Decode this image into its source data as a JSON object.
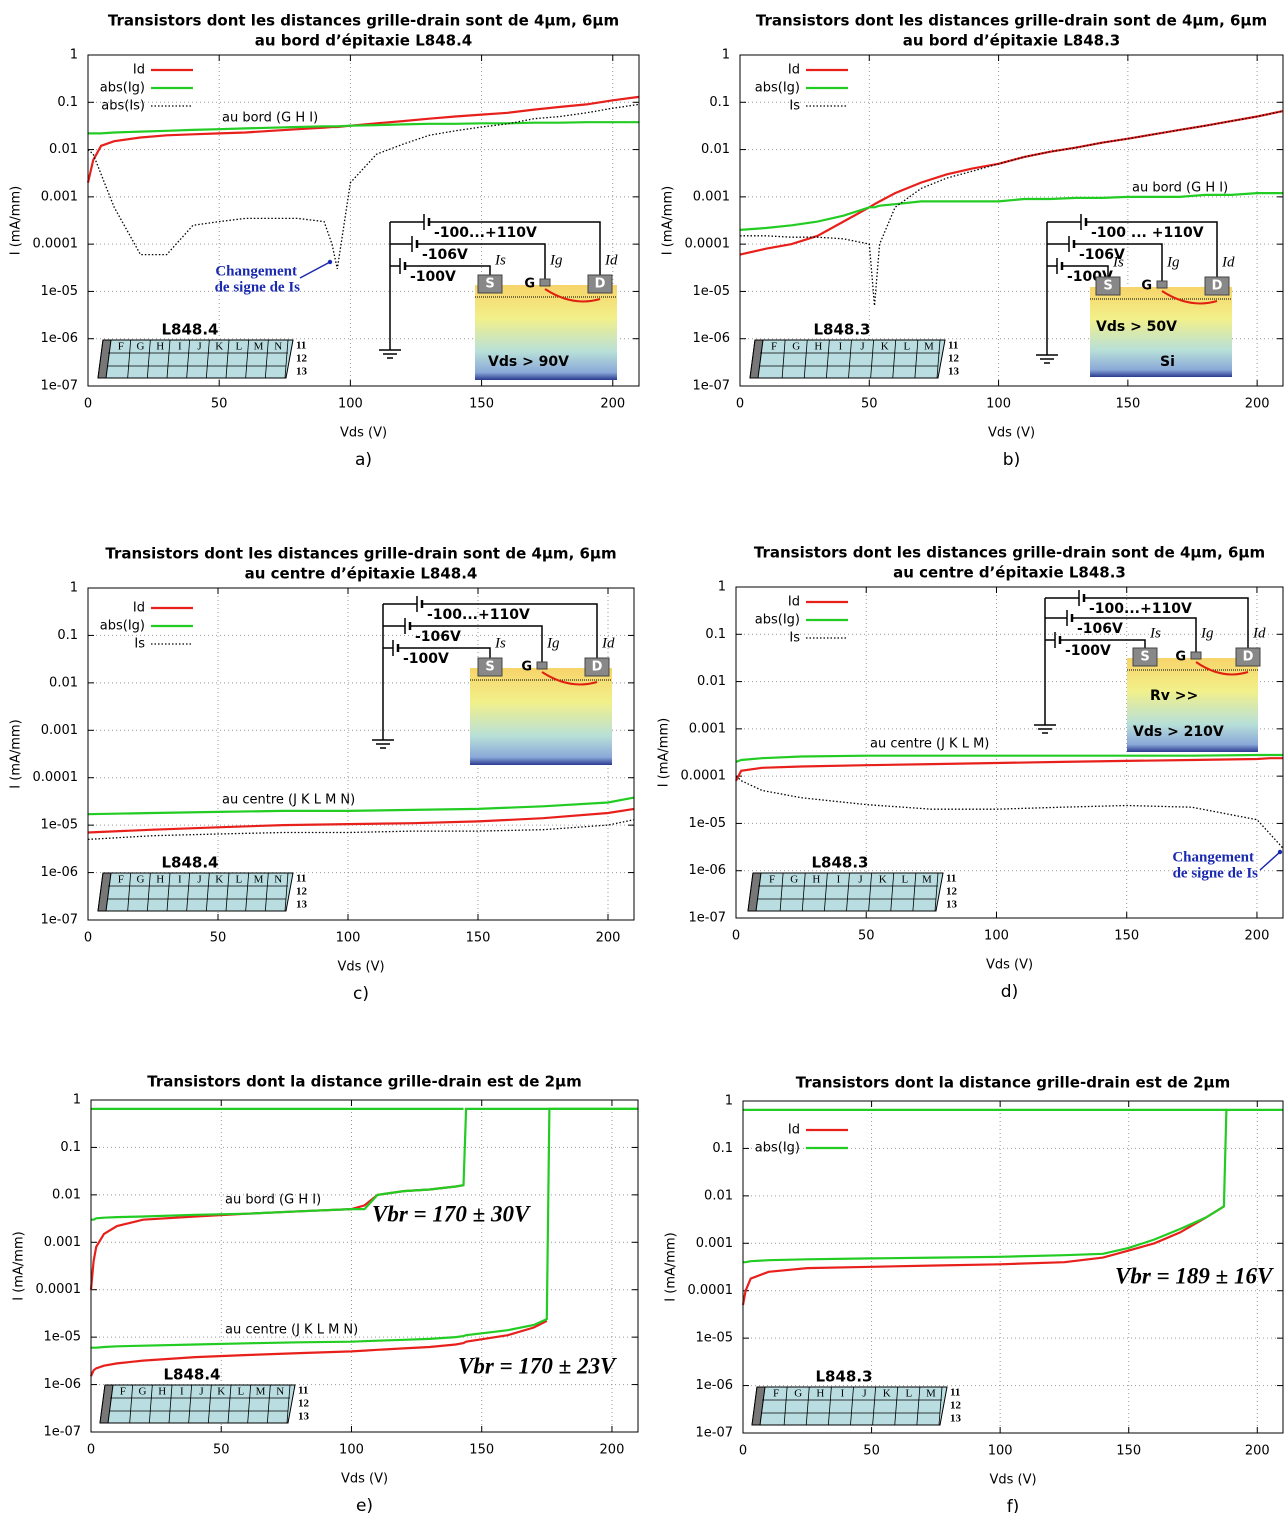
{
  "chart_data": [
    {
      "type": "line",
      "title": "Transistors dont les distances grille-drain sont de 4μm, 6μm",
      "subtitle": "au bord d’épitaxie L848.4",
      "label": "a)",
      "xlabel": "Vds (V)",
      "ylabel": "I  (mA/mm)",
      "ylog": true,
      "grid": true,
      "xlim": [
        0,
        210
      ],
      "xticks": [
        0,
        50,
        100,
        150,
        200
      ],
      "ylim": [
        1e-07,
        1
      ],
      "yticks": [
        1,
        0.1,
        0.01,
        0.001,
        0.0001,
        {
          "value": 1e-05,
          "label": "1e-05"
        },
        {
          "value": 1e-06,
          "label": "1e-06"
        },
        {
          "value": 1e-07,
          "label": "1e-07"
        }
      ],
      "x": [
        0,
        2,
        5,
        10,
        20,
        30,
        40,
        50,
        60,
        70,
        80,
        90,
        93,
        95,
        100,
        110,
        120,
        130,
        140,
        150,
        160,
        170,
        180,
        190,
        200,
        210
      ],
      "series": [
        {
          "name": "Id",
          "color": "#e8201c",
          "values": [
            0.002,
            0.006,
            0.012,
            0.015,
            0.018,
            0.02,
            0.021,
            0.022,
            0.023,
            0.025,
            0.027,
            0.029,
            0.03,
            0.03,
            0.032,
            0.036,
            0.04,
            0.045,
            0.05,
            0.055,
            0.06,
            0.07,
            0.08,
            0.09,
            0.11,
            0.13
          ]
        },
        {
          "name": "abs(Ig)",
          "color": "#22cc22",
          "values": [
            0.022,
            0.022,
            0.022,
            0.023,
            0.024,
            0.025,
            0.026,
            0.027,
            0.028,
            0.029,
            0.03,
            0.031,
            0.031,
            0.031,
            0.032,
            0.033,
            0.034,
            0.035,
            0.035,
            0.036,
            0.036,
            0.037,
            0.037,
            0.038,
            0.038,
            0.038
          ]
        },
        {
          "name": "abs(Is)",
          "color": "#000000",
          "style": "dotted",
          "values": [
            0.01,
            0.008,
            0.003,
            0.0006,
            6e-05,
            6e-05,
            0.00025,
            0.0003,
            0.00035,
            0.00035,
            0.00035,
            0.0003,
            0.0001,
            3e-05,
            0.002,
            0.008,
            0.013,
            0.02,
            0.025,
            0.03,
            0.035,
            0.045,
            0.05,
            0.06,
            0.075,
            0.09
          ]
        }
      ],
      "annotations": [
        "au bord (G H I)",
        "Changement",
        "de signe de Is"
      ],
      "inset": {
        "wafer": "L848.4",
        "columns": [
          "F",
          "G",
          "H",
          "I",
          "J",
          "K",
          "L",
          "M",
          "N"
        ],
        "rows": [
          "11",
          "12",
          "13"
        ],
        "circuit": [
          "-100...+110V",
          "-106V",
          "-100V"
        ],
        "terminals": [
          "S",
          "G",
          "D"
        ],
        "currents": [
          "Is",
          "Ig",
          "Id"
        ],
        "extras": [
          "Vds > 90V"
        ]
      }
    },
    {
      "type": "line",
      "title": "Transistors dont les distances grille-drain sont de 4μm, 6μm",
      "subtitle": "au bord d’épitaxie L848.3",
      "label": "b)",
      "xlabel": "Vds (V)",
      "ylabel": "I  (mA/mm)",
      "ylog": true,
      "grid": true,
      "xlim": [
        0,
        210
      ],
      "xticks": [
        0,
        50,
        100,
        150,
        200
      ],
      "ylim": [
        1e-07,
        1
      ],
      "yticks": [
        1,
        0.1,
        0.01,
        0.001,
        0.0001,
        {
          "value": 1e-05,
          "label": "1e-05"
        },
        {
          "value": 1e-06,
          "label": "1e-06"
        },
        {
          "value": 1e-07,
          "label": "1e-07"
        }
      ],
      "x": [
        0,
        10,
        20,
        30,
        40,
        50,
        52,
        54,
        60,
        70,
        80,
        90,
        100,
        110,
        120,
        130,
        140,
        150,
        160,
        170,
        180,
        190,
        200,
        210
      ],
      "series": [
        {
          "name": "Id",
          "color": "#e8201c",
          "values": [
            6e-05,
            8e-05,
            0.0001,
            0.00015,
            0.0003,
            0.0006,
            0.0007,
            0.0008,
            0.0012,
            0.002,
            0.003,
            0.004,
            0.005,
            0.007,
            0.009,
            0.011,
            0.014,
            0.017,
            0.021,
            0.026,
            0.032,
            0.04,
            0.05,
            0.065
          ]
        },
        {
          "name": "abs(Ig)",
          "color": "#22cc22",
          "values": [
            0.0002,
            0.00022,
            0.00025,
            0.0003,
            0.0004,
            0.0006,
            0.0006,
            0.00065,
            0.0007,
            0.0008,
            0.0008,
            0.0008,
            0.0008,
            0.0009,
            0.0009,
            0.00095,
            0.00095,
            0.001,
            0.001,
            0.001,
            0.0011,
            0.0011,
            0.0012,
            0.0012
          ]
        },
        {
          "name": "Is",
          "color": "#000000",
          "style": "dotted",
          "values": [
            0.00015,
            0.00015,
            0.00014,
            0.00014,
            0.00013,
            0.0001,
            5e-06,
            0.0001,
            0.0006,
            0.0015,
            0.0025,
            0.0035,
            0.005,
            0.007,
            0.009,
            0.011,
            0.014,
            0.017,
            0.021,
            0.026,
            0.032,
            0.04,
            0.05,
            0.065
          ]
        }
      ],
      "annotations": [
        "au bord (G H I)"
      ],
      "inset": {
        "wafer": "L848.3",
        "columns": [
          "F",
          "G",
          "H",
          "I",
          "J",
          "K",
          "L",
          "M"
        ],
        "rows": [
          "11",
          "12",
          "13"
        ],
        "circuit": [
          "-100 ... +110V",
          "-106V",
          "-100V"
        ],
        "terminals": [
          "S",
          "G",
          "D"
        ],
        "currents": [
          "Is",
          "Ig",
          "Id"
        ],
        "extras": [
          "Vds > 50V",
          "Si"
        ]
      }
    },
    {
      "type": "line",
      "title": "Transistors dont les distances grille-drain sont de 4μm, 6μm",
      "subtitle": "au centre d’épitaxie L848.4",
      "label": "c)",
      "xlabel": "Vds (V)",
      "ylabel": "I  (mA/mm)",
      "ylog": true,
      "grid": true,
      "xlim": [
        0,
        210
      ],
      "xticks": [
        0,
        50,
        100,
        150,
        200
      ],
      "ylim": [
        1e-07,
        1
      ],
      "yticks": [
        1,
        0.1,
        0.01,
        0.001,
        0.0001,
        {
          "value": 1e-05,
          "label": "1e-05"
        },
        {
          "value": 1e-06,
          "label": "1e-06"
        },
        {
          "value": 1e-07,
          "label": "1e-07"
        }
      ],
      "x": [
        0,
        25,
        50,
        75,
        100,
        125,
        150,
        175,
        200,
        210
      ],
      "series": [
        {
          "name": "Id",
          "color": "#e8201c",
          "values": [
            7e-06,
            8e-06,
            9e-06,
            1e-05,
            1.05e-05,
            1.1e-05,
            1.2e-05,
            1.4e-05,
            1.8e-05,
            2.2e-05
          ]
        },
        {
          "name": "abs(Ig)",
          "color": "#22cc22",
          "values": [
            1.7e-05,
            1.8e-05,
            1.9e-05,
            2e-05,
            2e-05,
            2.1e-05,
            2.2e-05,
            2.5e-05,
            3e-05,
            3.8e-05
          ]
        },
        {
          "name": "Is",
          "color": "#000000",
          "style": "dotted",
          "values": [
            5e-06,
            6e-06,
            6.5e-06,
            7e-06,
            7e-06,
            7.5e-06,
            7.5e-06,
            8e-06,
            1e-05,
            1.3e-05
          ]
        }
      ],
      "annotations": [
        "au centre (J K L M N)"
      ],
      "inset": {
        "wafer": "L848.4",
        "columns": [
          "F",
          "G",
          "H",
          "I",
          "J",
          "K",
          "L",
          "M",
          "N"
        ],
        "rows": [
          "11",
          "12",
          "13"
        ],
        "circuit": [
          "-100...+110V",
          "-106V",
          "-100V"
        ],
        "terminals": [
          "S",
          "G",
          "D"
        ],
        "currents": [
          "Is",
          "Ig",
          "Id"
        ],
        "extras": []
      }
    },
    {
      "type": "line",
      "title": "Transistors dont les distances grille-drain sont de 4μm, 6μm",
      "subtitle": "au centre d’épitaxie L848.3",
      "label": "d)",
      "xlabel": "Vds (V)",
      "ylabel": "I  (mA/mm)",
      "ylog": true,
      "grid": true,
      "xlim": [
        0,
        210
      ],
      "xticks": [
        0,
        50,
        100,
        150,
        200
      ],
      "ylim": [
        1e-07,
        1
      ],
      "yticks": [
        1,
        0.1,
        0.01,
        0.001,
        0.0001,
        {
          "value": 1e-05,
          "label": "1e-05"
        },
        {
          "value": 1e-06,
          "label": "1e-06"
        },
        {
          "value": 1e-07,
          "label": "1e-07"
        }
      ],
      "x": [
        0,
        2,
        10,
        25,
        50,
        75,
        100,
        125,
        150,
        175,
        200,
        205,
        210
      ],
      "series": [
        {
          "name": "Id",
          "color": "#e8201c",
          "values": [
            8e-05,
            0.00013,
            0.00015,
            0.00016,
            0.00017,
            0.00018,
            0.00019,
            0.0002,
            0.00021,
            0.00022,
            0.00023,
            0.00024,
            0.00024
          ]
        },
        {
          "name": "abs(Ig)",
          "color": "#22cc22",
          "values": [
            0.0002,
            0.00022,
            0.00024,
            0.00026,
            0.00027,
            0.00027,
            0.00027,
            0.00027,
            0.00027,
            0.00027,
            0.00028,
            0.00028,
            0.00028
          ]
        },
        {
          "name": "Is",
          "color": "#000000",
          "style": "dotted",
          "values": [
            0.0001,
            8e-05,
            5e-05,
            3.5e-05,
            2.5e-05,
            2e-05,
            2e-05,
            2.2e-05,
            2.4e-05,
            2.2e-05,
            1.2e-05,
            6e-06,
            3e-06
          ]
        }
      ],
      "annotations": [
        "au centre (J K L M)",
        "Changement",
        "de signe de Is"
      ],
      "inset": {
        "wafer": "L848.3",
        "columns": [
          "F",
          "G",
          "H",
          "I",
          "J",
          "K",
          "L",
          "M"
        ],
        "rows": [
          "11",
          "12",
          "13"
        ],
        "circuit": [
          "-100...+110V",
          "-106V",
          "-100V"
        ],
        "terminals": [
          "S",
          "G",
          "D"
        ],
        "currents": [
          "Is",
          "Ig",
          "Id"
        ],
        "extras": [
          "Vds > 210V",
          "Rv >>"
        ]
      }
    },
    {
      "type": "line",
      "title": "Transistors dont la distance grille-drain est de 2μm",
      "label": "e)",
      "xlabel": "Vds (V)",
      "ylabel": "I  (mA/mm)",
      "ylog": true,
      "grid": true,
      "xlim": [
        0,
        210
      ],
      "xticks": [
        0,
        50,
        100,
        150,
        200
      ],
      "ylim": [
        1e-07,
        1
      ],
      "yticks": [
        1,
        0.1,
        0.01,
        0.001,
        0.0001,
        {
          "value": 1e-05,
          "label": "1e-05"
        },
        {
          "value": 1e-06,
          "label": "1e-06"
        },
        {
          "value": 1e-07,
          "label": "1e-07"
        }
      ],
      "x": [
        0,
        1,
        2,
        5,
        10,
        20,
        40,
        60,
        80,
        100,
        105,
        110,
        120,
        130,
        140,
        143,
        144,
        160,
        170,
        175,
        176,
        190,
        210
      ],
      "series": [
        {
          "color": "#22cc22",
          "values": [
            0.65,
            0.65,
            0.65,
            0.65,
            0.65,
            0.65,
            0.65,
            0.65,
            0.65,
            0.65,
            0.65,
            0.65,
            0.65,
            0.65,
            0.65,
            0.65,
            null,
            null,
            null,
            null,
            null,
            null,
            null
          ]
        },
        {
          "color": "#e8201c",
          "values": [
            0.0001,
            0.0004,
            0.0008,
            0.0015,
            0.0022,
            0.003,
            0.0035,
            0.004,
            0.0045,
            0.005,
            0.006,
            0.01,
            0.012,
            0.013,
            0.015,
            0.016,
            null,
            null,
            null,
            null,
            null,
            null,
            null
          ]
        },
        {
          "color": "#22cc22",
          "values": [
            0.003,
            0.003,
            0.0032,
            0.0033,
            0.0034,
            0.0035,
            0.0038,
            0.004,
            0.0045,
            0.005,
            0.005,
            0.01,
            0.012,
            0.013,
            0.015,
            0.016,
            0.65,
            0.65,
            0.65,
            0.65,
            0.65,
            0.65,
            0.65
          ]
        },
        {
          "color": "#e8201c",
          "values": [
            1.5e-06,
            2e-06,
            2.2e-06,
            2.5e-06,
            2.8e-06,
            3.2e-06,
            3.8e-06,
            4.2e-06,
            4.6e-06,
            5e-06,
            5.2e-06,
            5.4e-06,
            5.8e-06,
            6.2e-06,
            7e-06,
            7.5e-06,
            8e-06,
            1.1e-05,
            1.6e-05,
            2.2e-05,
            null,
            null,
            null
          ]
        },
        {
          "color": "#22cc22",
          "values": [
            6e-06,
            6e-06,
            6e-06,
            6.2e-06,
            6.4e-06,
            6.6e-06,
            7e-06,
            7.4e-06,
            7.8e-06,
            8e-06,
            8.2e-06,
            8.4e-06,
            8.8e-06,
            9.2e-06,
            1e-05,
            1.05e-05,
            1.1e-05,
            1.4e-05,
            1.8e-05,
            2.4e-05,
            0.65,
            0.65,
            0.65
          ]
        }
      ],
      "annotations": [
        "au bord (G H I)",
        "au centre (J K L M N)",
        "Vbr = 170 ± 30V",
        "Vbr = 170 ± 23V"
      ],
      "inset": {
        "wafer": "L848.4",
        "columns": [
          "F",
          "G",
          "H",
          "I",
          "J",
          "K",
          "L",
          "M",
          "N"
        ],
        "rows": [
          "11",
          "12",
          "13"
        ]
      }
    },
    {
      "type": "line",
      "title": "Transistors dont la distance grille-drain est de 2μm",
      "label": "f)",
      "xlabel": "Vds (V)",
      "ylabel": "I  (mA/mm)",
      "ylog": true,
      "grid": true,
      "xlim": [
        0,
        210
      ],
      "xticks": [
        0,
        50,
        100,
        150,
        200
      ],
      "ylim": [
        1e-07,
        1
      ],
      "yticks": [
        1,
        0.1,
        0.01,
        0.001,
        0.0001,
        {
          "value": 1e-05,
          "label": "1e-05"
        },
        {
          "value": 1e-06,
          "label": "1e-06"
        },
        {
          "value": 1e-07,
          "label": "1e-07"
        }
      ],
      "x": [
        0,
        1,
        3,
        10,
        25,
        50,
        75,
        100,
        125,
        140,
        150,
        160,
        170,
        180,
        187,
        188,
        190,
        210
      ],
      "series": [
        {
          "name": "Id",
          "color": "#e8201c",
          "values": [
            5e-05,
            0.0001,
            0.00018,
            0.00025,
            0.0003,
            0.00032,
            0.00034,
            0.00036,
            0.0004,
            0.0005,
            0.0007,
            0.001,
            0.0017,
            0.0035,
            0.006,
            null,
            null,
            null
          ]
        },
        {
          "name": "abs(Ig)",
          "color": "#22cc22",
          "values": [
            0.0004,
            0.0004,
            0.00042,
            0.00044,
            0.00046,
            0.00048,
            0.0005,
            0.00052,
            0.00056,
            0.0006,
            0.0008,
            0.0012,
            0.002,
            0.0035,
            0.006,
            0.65,
            0.65,
            0.65
          ]
        },
        {
          "color": "#22cc22",
          "values": [
            0.65,
            0.65,
            0.65,
            0.65,
            0.65,
            0.65,
            0.65,
            0.65,
            0.65,
            0.65,
            0.65,
            0.65,
            0.65,
            0.65,
            0.65,
            0.65,
            null,
            null
          ]
        }
      ],
      "annotations": [
        "Vbr = 189 ± 16V"
      ],
      "inset": {
        "wafer": "L848.3",
        "columns": [
          "F",
          "G",
          "H",
          "I",
          "J",
          "K",
          "L",
          "M"
        ],
        "rows": [
          "11",
          "12",
          "13"
        ]
      }
    }
  ]
}
